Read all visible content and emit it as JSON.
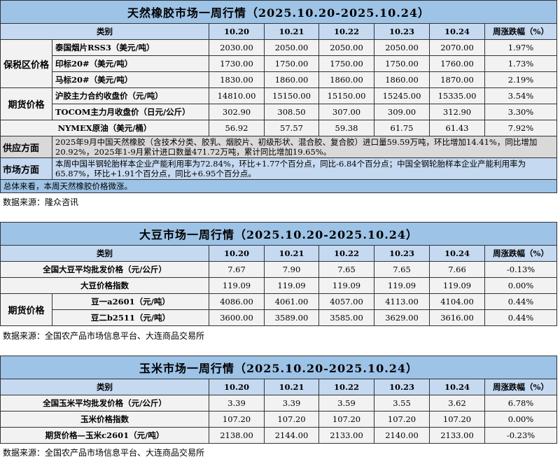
{
  "columns": [
    "类别",
    "10.20",
    "10.21",
    "10.22",
    "10.23",
    "10.24",
    "周涨跌幅（%）"
  ],
  "rubber": {
    "title": "天然橡胶市场一周行情（2025.10.20-2025.10.24）",
    "groups": [
      {
        "group": "保税区价格",
        "rows": [
          {
            "label": "泰国烟片RSS3（美元/吨）",
            "values": [
              "2030.00",
              "2050.00",
              "2050.00",
              "2050.00",
              "2070.00",
              "1.97%"
            ]
          },
          {
            "label": "印标20#（美元/吨）",
            "values": [
              "1730.00",
              "1750.00",
              "1750.00",
              "1750.00",
              "1760.00",
              "1.73%"
            ]
          },
          {
            "label": "马标20#（美元/吨）",
            "values": [
              "1830.00",
              "1860.00",
              "1860.00",
              "1860.00",
              "1870.00",
              "2.19%"
            ]
          }
        ]
      },
      {
        "group": "期货价格",
        "rows": [
          {
            "label": "沪胶主力合约收盘价（元/吨）",
            "values": [
              "14810.00",
              "15150.00",
              "15150.00",
              "15245.00",
              "15335.00",
              "3.54%"
            ]
          },
          {
            "label": "TOCOM主力月收盘价（日元/公斤）",
            "values": [
              "302.90",
              "308.50",
              "307.00",
              "309.00",
              "312.90",
              "3.30%"
            ]
          }
        ]
      },
      {
        "group": "",
        "rows": [
          {
            "label": "NYMEX原油（美元/桶）",
            "values": [
              "56.92",
              "57.57",
              "59.38",
              "61.75",
              "61.43",
              "7.92%"
            ]
          }
        ]
      }
    ],
    "supply_label": "供应方面",
    "supply_text": "2025年9月中国天然橡胶（含技术分类、胶乳、烟胶片、初级形状、混合胶、复合胶）进口量59.59万吨，环比增加14.41%，同比增加20.92%，2025年1-9月累计进口数量471.72万吨，累计同比增加19.65%。",
    "market_label": "市场方面",
    "market_text": "本周中国半钢轮胎样本企业产能利用率为72.84%，环比+1.77个百分点，同比-6.84个百分点；中国全钢轮胎样本企业产能利用率为65.87%，环比+1.91个百分点，同比+6.95个百分点。",
    "summary": "总体来看，本周天然橡胶价格微涨。",
    "source": "数据来源：隆众咨讯"
  },
  "soybean": {
    "title": "大豆市场一周行情（2025.10.20-2025.10.24）",
    "groups": [
      {
        "group": "",
        "rows": [
          {
            "label": "全国大豆平均批发价格（元/公斤）",
            "values": [
              "7.67",
              "7.90",
              "7.65",
              "7.65",
              "7.66",
              "-0.13%"
            ]
          },
          {
            "label": "大豆价格指数",
            "values": [
              "119.09",
              "119.09",
              "119.09",
              "119.09",
              "119.09",
              "0.00%"
            ]
          }
        ]
      },
      {
        "group": "期货价格",
        "rows": [
          {
            "label": "豆一a2601（元/吨）",
            "values": [
              "4086.00",
              "4061.00",
              "4057.00",
              "4113.00",
              "4104.00",
              "0.44%"
            ]
          },
          {
            "label": "豆二b2511（元/吨）",
            "values": [
              "3600.00",
              "3589.00",
              "3585.00",
              "3629.00",
              "3616.00",
              "0.44%"
            ]
          }
        ]
      }
    ],
    "source": "数据来源：全国农产品市场信息平台、大连商品交易所"
  },
  "corn": {
    "title": "玉米市场一周行情（2025.10.20-2025.10.24）",
    "groups": [
      {
        "group": "",
        "rows": [
          {
            "label": "全国玉米平均批发价格（元/公斤）",
            "values": [
              "3.39",
              "3.39",
              "3.59",
              "3.55",
              "3.62",
              "6.78%"
            ]
          },
          {
            "label": "玉米价格指数",
            "values": [
              "107.20",
              "107.20",
              "107.20",
              "107.20",
              "107.20",
              "0.00%"
            ]
          },
          {
            "label": "期货价格—玉米c2601（元/吨）",
            "values": [
              "2138.00",
              "2144.00",
              "2133.00",
              "2140.00",
              "2133.00",
              "-0.23%"
            ]
          }
        ]
      }
    ],
    "source": "数据来源：全国农产品市场信息平台、大连商品交易所"
  }
}
